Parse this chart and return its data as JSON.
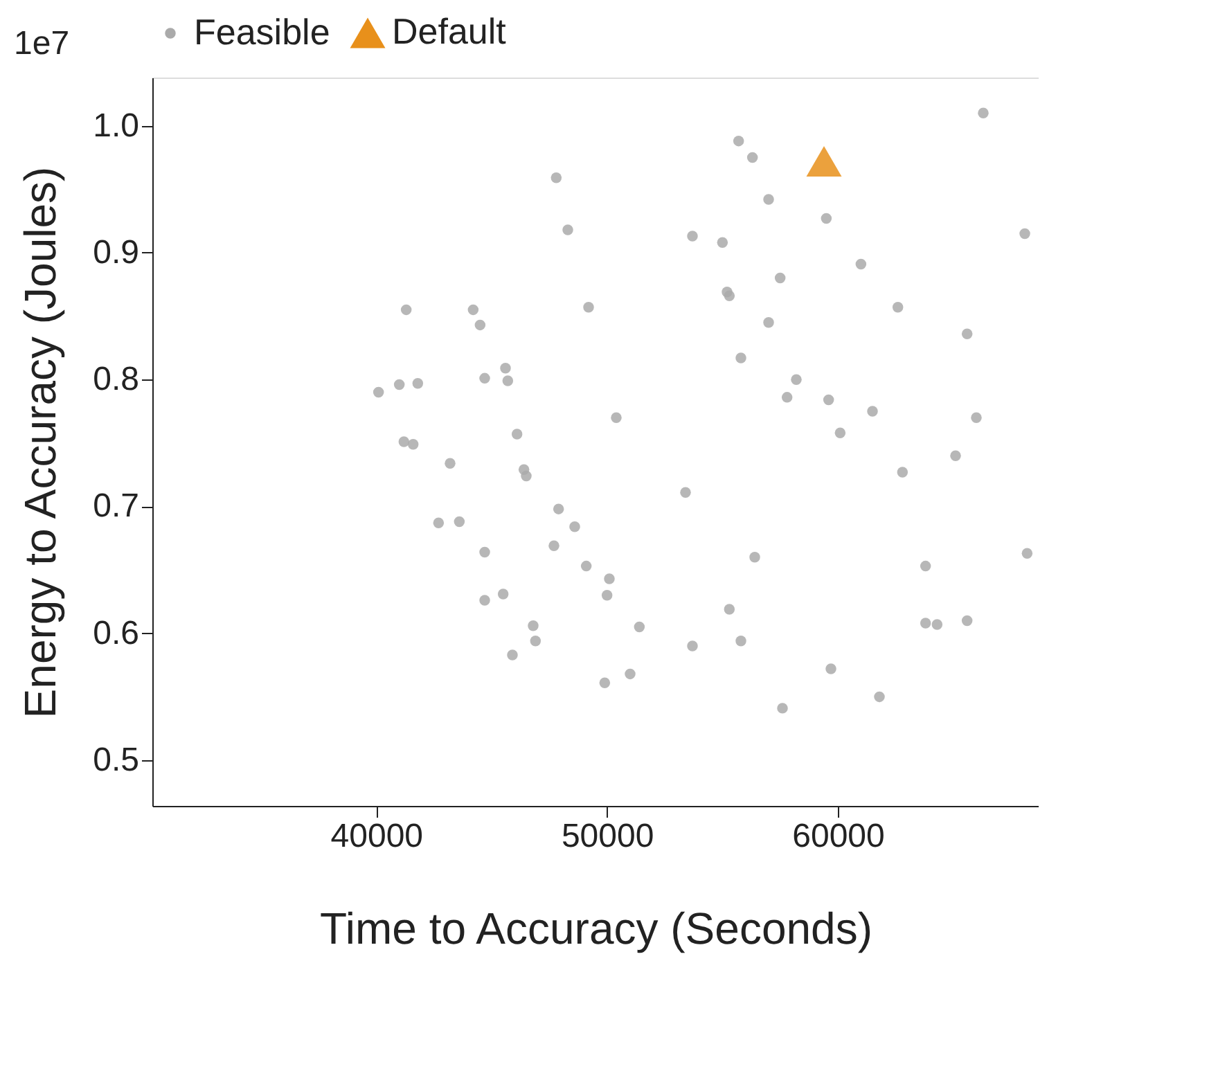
{
  "chart_data": {
    "type": "scatter",
    "xlabel": "Time to Accuracy (Seconds)",
    "ylabel": "Energy to Accuracy (Joules)",
    "annotations": [
      "1e7"
    ],
    "xlim": [
      30300,
      68700
    ],
    "ylim": [
      0.464,
      1.038
    ],
    "xticks": [
      40000,
      50000,
      60000
    ],
    "yticks": [
      0.5,
      0.6,
      0.7,
      0.8,
      0.9,
      {
        "value": 1.0,
        "label": "1.0"
      }
    ],
    "grid": false,
    "legend": "top",
    "series": [
      {
        "name": "Feasible",
        "color": "#aaaaaa",
        "marker": "circle",
        "x": [
          40100,
          41000,
          41800,
          41300,
          41200,
          41600,
          43200,
          42700,
          43600,
          44200,
          44500,
          44700,
          45600,
          45700,
          46100,
          46400,
          46500,
          44700,
          44700,
          45500,
          45900,
          46800,
          46900,
          47800,
          48300,
          47900,
          48600,
          47700,
          49200,
          49100,
          50100,
          50000,
          49900,
          50400,
          51400,
          51000,
          53400,
          53700,
          53700,
          55000,
          55200,
          55300,
          55300,
          55700,
          55800,
          55800,
          56300,
          56400,
          57000,
          57000,
          57500,
          57800,
          58200,
          57600,
          59500,
          59600,
          59700,
          60100,
          61000,
          61500,
          61800,
          62600,
          62800,
          63800,
          63800,
          64300,
          65100,
          65600,
          65600,
          66000,
          66300,
          68100,
          68200
        ],
        "values": [
          0.79,
          0.796,
          0.797,
          0.855,
          0.751,
          0.749,
          0.734,
          0.687,
          0.688,
          0.855,
          0.843,
          0.801,
          0.809,
          0.799,
          0.757,
          0.729,
          0.724,
          0.664,
          0.626,
          0.631,
          0.583,
          0.606,
          0.594,
          0.959,
          0.918,
          0.698,
          0.684,
          0.669,
          0.857,
          0.653,
          0.643,
          0.63,
          0.561,
          0.77,
          0.605,
          0.568,
          0.711,
          0.913,
          0.59,
          0.908,
          0.869,
          0.866,
          0.619,
          0.988,
          0.817,
          0.594,
          0.975,
          0.66,
          0.942,
          0.845,
          0.88,
          0.786,
          0.8,
          0.541,
          0.927,
          0.784,
          0.572,
          0.758,
          0.891,
          0.775,
          0.55,
          0.857,
          0.727,
          0.653,
          0.608,
          0.607,
          0.74,
          0.61,
          0.836,
          0.77,
          1.01,
          0.915,
          0.663
        ]
      },
      {
        "name": "Default",
        "color": "#e8901b",
        "marker": "triangle",
        "x": [
          59400
        ],
        "values": [
          0.972
        ]
      }
    ]
  }
}
